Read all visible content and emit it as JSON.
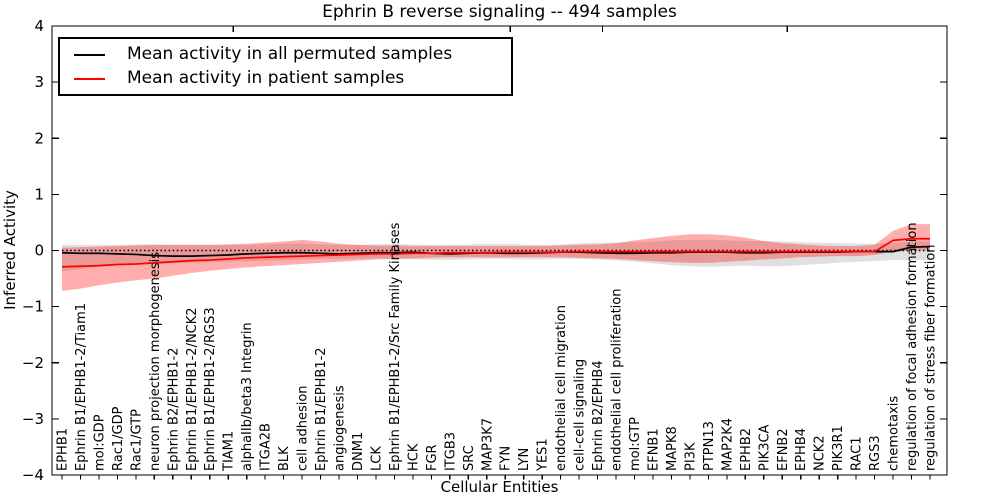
{
  "title": "Ephrin B reverse signaling -- 494 samples",
  "legend": {
    "items": [
      {
        "label": "Mean activity in all permuted samples",
        "color": "#000000"
      },
      {
        "label": "Mean activity in patient samples",
        "color": "#ff0000"
      }
    ]
  },
  "chart_data": {
    "type": "line",
    "title": "Ephrin B reverse signaling -- 494 samples",
    "xlabel": "Cellular Entities",
    "ylabel": "Inferred Activity",
    "ylim": [
      -4,
      4
    ],
    "yticks": [
      4,
      3,
      2,
      1,
      0,
      -1,
      -2,
      -3,
      -4
    ],
    "grid": false,
    "legend_position": "upper left",
    "reference_line": {
      "value": 0,
      "style": "dotted",
      "color": "#000000"
    },
    "categories": [
      "EPHB1",
      "Ephrin B1/EPHB1-2/Tiam1",
      "mol:GDP",
      "Rac1/GDP",
      "Rac1/GTP",
      "neuron projection morphogenesis",
      "Ephrin B2/EPHB1-2",
      "Ephrin B1/EPHB1-2/NCK2",
      "Ephrin B1/EPHB1-2/RGS3",
      "TIAM1",
      "alphaIIb/beta3 Integrin",
      "ITGA2B",
      "BLK",
      "cell adhesion",
      "Ephrin B1/EPHB1-2",
      "angiogenesis",
      "DNM1",
      "LCK",
      "Ephrin B1/EPHB1-2/Src Family Kinases",
      "HCK",
      "FGR",
      "ITGB3",
      "SRC",
      "MAP3K7",
      "FYN",
      "LYN",
      "YES1",
      "endothelial cell migration",
      "cell-cell signaling",
      "Ephrin B2/EPHB4",
      "endothelial cell proliferation",
      "mol:GTP",
      "EFNB1",
      "MAPK8",
      "PI3K",
      "PTPN13",
      "MAP2K4",
      "EPHB2",
      "PIK3CA",
      "EFNB2",
      "EPHB4",
      "NCK2",
      "PIK3R1",
      "RAC1",
      "RGS3",
      "chemotaxis",
      "regulation of focal adhesion formation",
      "regulation of stress fiber formation"
    ],
    "series": [
      {
        "name": "Mean activity in all permuted samples",
        "color": "#000000",
        "style": "solid",
        "values": [
          -0.04,
          -0.05,
          -0.05,
          -0.06,
          -0.07,
          -0.09,
          -0.1,
          -0.1,
          -0.09,
          -0.08,
          -0.06,
          -0.05,
          -0.04,
          -0.04,
          -0.05,
          -0.06,
          -0.05,
          -0.04,
          -0.04,
          -0.03,
          -0.05,
          -0.06,
          -0.05,
          -0.04,
          -0.05,
          -0.05,
          -0.04,
          -0.03,
          -0.03,
          -0.04,
          -0.05,
          -0.05,
          -0.04,
          -0.04,
          -0.03,
          -0.03,
          -0.03,
          -0.04,
          -0.04,
          -0.03,
          -0.03,
          -0.03,
          -0.03,
          -0.02,
          -0.02,
          -0.02,
          0.06,
          0.07
        ]
      },
      {
        "name": "Mean activity in patient samples",
        "color": "#ff0000",
        "style": "solid",
        "values": [
          -0.29,
          -0.28,
          -0.27,
          -0.25,
          -0.24,
          -0.22,
          -0.2,
          -0.18,
          -0.17,
          -0.15,
          -0.13,
          -0.12,
          -0.11,
          -0.1,
          -0.09,
          -0.08,
          -0.07,
          -0.06,
          -0.06,
          -0.05,
          -0.05,
          -0.04,
          -0.04,
          -0.04,
          -0.03,
          -0.03,
          -0.03,
          -0.03,
          -0.02,
          -0.02,
          -0.02,
          -0.02,
          -0.02,
          -0.02,
          -0.02,
          -0.02,
          -0.02,
          -0.02,
          -0.02,
          -0.02,
          -0.02,
          -0.02,
          -0.02,
          -0.02,
          -0.02,
          0.18,
          0.21,
          0.21
        ]
      }
    ],
    "bands": [
      {
        "name": "permuted samples range",
        "color": "rgba(0,0,0,0.12)",
        "upper": [
          0.1,
          0.1,
          0.1,
          0.1,
          0.11,
          0.11,
          0.1,
          0.1,
          0.1,
          0.1,
          0.1,
          0.11,
          0.12,
          0.12,
          0.11,
          0.1,
          0.1,
          0.11,
          0.12,
          0.11,
          0.1,
          0.1,
          0.11,
          0.12,
          0.12,
          0.11,
          0.1,
          0.11,
          0.13,
          0.14,
          0.14,
          0.15,
          0.16,
          0.18,
          0.19,
          0.19,
          0.18,
          0.17,
          0.17,
          0.16,
          0.15,
          0.14,
          0.13,
          0.12,
          0.12,
          0.13,
          0.16,
          0.16
        ],
        "lower": [
          -0.37,
          -0.33,
          -0.29,
          -0.26,
          -0.25,
          -0.24,
          -0.23,
          -0.22,
          -0.21,
          -0.2,
          -0.19,
          -0.18,
          -0.17,
          -0.16,
          -0.15,
          -0.15,
          -0.14,
          -0.14,
          -0.15,
          -0.16,
          -0.17,
          -0.17,
          -0.16,
          -0.15,
          -0.15,
          -0.16,
          -0.16,
          -0.15,
          -0.15,
          -0.16,
          -0.18,
          -0.2,
          -0.23,
          -0.26,
          -0.28,
          -0.29,
          -0.28,
          -0.27,
          -0.28,
          -0.28,
          -0.26,
          -0.24,
          -0.22,
          -0.2,
          -0.19,
          -0.17,
          -0.17,
          -0.17
        ]
      },
      {
        "name": "patient samples range",
        "color": "rgba(255,0,0,0.32)",
        "upper": [
          0.05,
          0.06,
          0.07,
          0.08,
          0.09,
          0.1,
          0.1,
          0.1,
          0.1,
          0.11,
          0.12,
          0.14,
          0.16,
          0.19,
          0.16,
          0.12,
          0.1,
          0.09,
          0.09,
          0.08,
          0.08,
          0.08,
          0.08,
          0.08,
          0.08,
          0.08,
          0.08,
          0.09,
          0.1,
          0.11,
          0.13,
          0.18,
          0.22,
          0.26,
          0.29,
          0.29,
          0.27,
          0.23,
          0.17,
          0.13,
          0.11,
          0.09,
          0.08,
          0.08,
          0.1,
          0.35,
          0.47,
          0.47
        ],
        "lower": [
          -0.72,
          -0.68,
          -0.62,
          -0.57,
          -0.53,
          -0.5,
          -0.45,
          -0.4,
          -0.36,
          -0.33,
          -0.3,
          -0.28,
          -0.26,
          -0.24,
          -0.22,
          -0.2,
          -0.18,
          -0.16,
          -0.15,
          -0.14,
          -0.13,
          -0.12,
          -0.12,
          -0.12,
          -0.12,
          -0.12,
          -0.12,
          -0.12,
          -0.13,
          -0.14,
          -0.15,
          -0.17,
          -0.19,
          -0.21,
          -0.22,
          -0.22,
          -0.2,
          -0.18,
          -0.16,
          -0.14,
          -0.12,
          -0.11,
          -0.1,
          -0.1,
          -0.08,
          -0.02,
          0.0,
          0.0
        ]
      }
    ]
  }
}
